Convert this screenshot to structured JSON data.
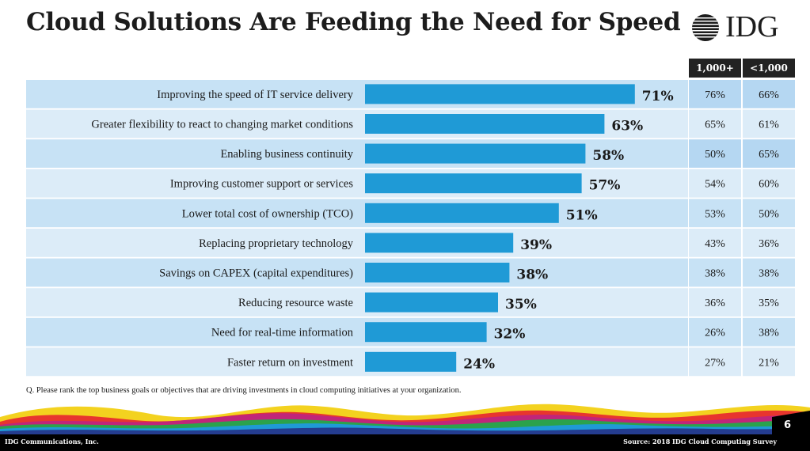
{
  "title": "Cloud Solutions Are Feeding the Need for Speed",
  "logo": {
    "text": "IDG"
  },
  "columns": {
    "large": "1,000+",
    "small": "<1,000"
  },
  "chart_data": {
    "type": "bar",
    "orientation": "horizontal",
    "title": "Cloud Solutions Are Feeding the Need for Speed",
    "xlim": [
      0,
      100
    ],
    "categories": [
      "Improving the speed of IT service delivery",
      "Greater flexibility to react to changing market conditions",
      "Enabling business continuity",
      "Improving customer support or services",
      "Lower total cost of ownership (TCO)",
      "Replacing proprietary technology",
      "Savings on CAPEX (capital expenditures)",
      "Reducing resource waste",
      "Need for real-time information",
      "Faster return on investment"
    ],
    "values": [
      71,
      63,
      58,
      57,
      51,
      39,
      38,
      35,
      32,
      24
    ],
    "value_labels": [
      "71%",
      "63%",
      "58%",
      "57%",
      "51%",
      "39%",
      "38%",
      "35%",
      "32%",
      "24%"
    ],
    "series": [
      {
        "name": "1,000+",
        "values": [
          "76%",
          "65%",
          "50%",
          "54%",
          "53%",
          "43%",
          "38%",
          "36%",
          "26%",
          "27%"
        ]
      },
      {
        "name": "<1,000",
        "values": [
          "66%",
          "61%",
          "65%",
          "60%",
          "50%",
          "36%",
          "38%",
          "35%",
          "38%",
          "21%"
        ]
      }
    ],
    "highlight": [
      [
        true,
        true
      ],
      [
        false,
        false
      ],
      [
        true,
        true
      ],
      [
        false,
        false
      ],
      [
        false,
        false
      ],
      [
        false,
        false
      ],
      [
        false,
        false
      ],
      [
        false,
        false
      ],
      [
        false,
        false
      ],
      [
        false,
        false
      ]
    ]
  },
  "colors": {
    "bar": "#1f9ad6",
    "row_light": "#dcecf8",
    "row_dark": "#c7e2f5",
    "cell_highlight": "#b5d7f2",
    "header_bg": "#222222"
  },
  "question": "Q. Please rank the top business goals or objectives that are driving investments in cloud computing initiatives at your organization.",
  "footer": {
    "left": "IDG Communications, Inc.",
    "right": "Source: 2018 IDG Cloud Computing Survey",
    "page": "6"
  }
}
